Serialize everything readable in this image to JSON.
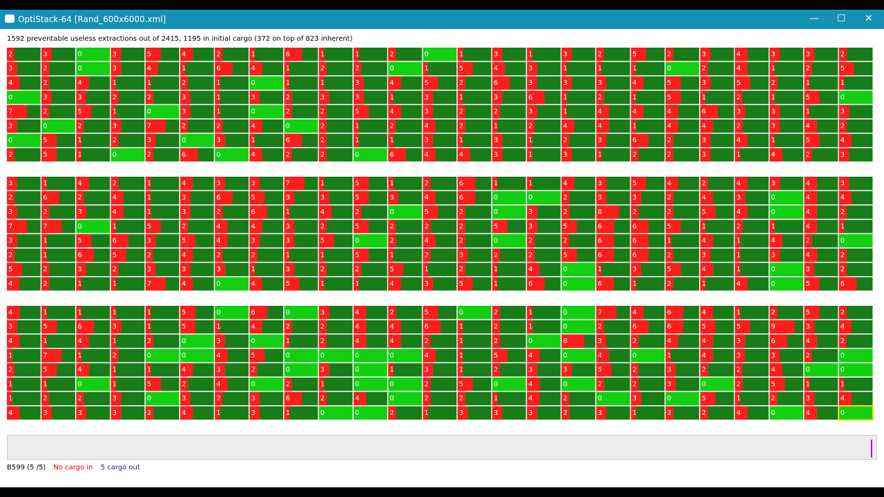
{
  "window": {
    "title": "OptiStack-64 [Rand_600x6000.xml]"
  },
  "summary": "1592 preventable useless extractions out of 2415, 1195 in initial cargo (372 on top of 823 inherent)",
  "grid": {
    "blocks": [
      [
        [
          2,
          3,
          0,
          3,
          5,
          4,
          2,
          1,
          6,
          1,
          1,
          2,
          0,
          1,
          3,
          1,
          3,
          2,
          5,
          2,
          3,
          4,
          3,
          3,
          2
        ],
        [
          3,
          2,
          0,
          3,
          4,
          1,
          6,
          4,
          1,
          2,
          2,
          0,
          1,
          5,
          4,
          3,
          1,
          1,
          1,
          0,
          2,
          4,
          1,
          2,
          5
        ],
        [
          4,
          2,
          4,
          1,
          1,
          2,
          1,
          0,
          1,
          1,
          3,
          4,
          5,
          2,
          6,
          3,
          3,
          3,
          4,
          5,
          3,
          5,
          2,
          1,
          1
        ],
        [
          0,
          3,
          3,
          2,
          2,
          3,
          1,
          3,
          2,
          3,
          3,
          1,
          3,
          1,
          3,
          6,
          1,
          2,
          1,
          5,
          1,
          2,
          1,
          5,
          0
        ],
        [
          7,
          2,
          5,
          1,
          0,
          3,
          1,
          0,
          2,
          2,
          5,
          4,
          3,
          2,
          2,
          3,
          1,
          4,
          4,
          4,
          6,
          3,
          3,
          1,
          3
        ],
        [
          3,
          0,
          2,
          3,
          7,
          2,
          2,
          4,
          0,
          2,
          1,
          2,
          4,
          2,
          1,
          2,
          4,
          4,
          1,
          4,
          4,
          2,
          3,
          4,
          2
        ],
        [
          0,
          5,
          1,
          2,
          3,
          0,
          3,
          1,
          6,
          2,
          1,
          1,
          3,
          1,
          3,
          1,
          2,
          3,
          6,
          2,
          3,
          4,
          1,
          5,
          4
        ],
        [
          2,
          5,
          1,
          0,
          2,
          6,
          0,
          4,
          2,
          2,
          0,
          6,
          4,
          4,
          3,
          1,
          3,
          1,
          2,
          2,
          3,
          1,
          4,
          2,
          3
        ]
      ],
      [
        [
          3,
          1,
          4,
          2,
          1,
          4,
          3,
          3,
          7,
          1,
          5,
          1,
          2,
          6,
          1,
          1,
          4,
          3,
          5,
          4,
          2,
          4,
          3,
          4,
          3
        ],
        [
          2,
          6,
          2,
          4,
          1,
          3,
          6,
          5,
          3,
          3,
          5,
          3,
          4,
          6,
          0,
          0,
          2,
          3,
          3,
          2,
          4,
          3,
          0,
          4,
          4
        ],
        [
          3,
          2,
          3,
          4,
          1,
          3,
          2,
          6,
          1,
          4,
          2,
          0,
          5,
          2,
          0,
          3,
          2,
          8,
          2,
          2,
          5,
          4,
          0,
          4,
          2
        ],
        [
          7,
          7,
          0,
          1,
          5,
          2,
          4,
          4,
          3,
          2,
          5,
          2,
          2,
          2,
          5,
          3,
          5,
          6,
          6,
          5,
          1,
          2,
          1,
          4,
          1
        ],
        [
          3,
          1,
          5,
          6,
          3,
          5,
          4,
          3,
          3,
          5,
          0,
          2,
          4,
          2,
          0,
          2,
          2,
          6,
          6,
          1,
          4,
          1,
          4,
          2,
          0
        ],
        [
          2,
          1,
          6,
          5,
          2,
          4,
          2,
          2,
          1,
          1,
          5,
          1,
          2,
          3,
          2,
          2,
          5,
          6,
          6,
          2,
          3,
          1,
          3,
          4,
          2
        ],
        [
          5,
          2,
          3,
          2,
          3,
          3,
          3,
          1,
          3,
          2,
          2,
          5,
          1,
          2,
          1,
          4,
          0,
          1,
          3,
          5,
          4,
          1,
          0,
          3,
          2
        ],
        [
          4,
          2,
          1,
          1,
          7,
          4,
          0,
          4,
          5,
          1,
          1,
          4,
          3,
          5,
          1,
          6,
          0,
          6,
          1,
          2,
          1,
          4,
          0,
          5,
          6
        ]
      ],
      [
        [
          4,
          1,
          1,
          1,
          1,
          5,
          0,
          6,
          0,
          3,
          4,
          2,
          5,
          0,
          2,
          1,
          0,
          7,
          4,
          6,
          4,
          1,
          2,
          5,
          2
        ],
        [
          3,
          5,
          6,
          3,
          1,
          5,
          1,
          4,
          2,
          2,
          4,
          4,
          6,
          1,
          2,
          1,
          0,
          2,
          6,
          6,
          5,
          5,
          9,
          3,
          4
        ],
        [
          4,
          1,
          4,
          1,
          2,
          0,
          3,
          0,
          1,
          2,
          4,
          4,
          2,
          1,
          2,
          0,
          8,
          3,
          2,
          4,
          4,
          3,
          6,
          4,
          2
        ],
        [
          1,
          7,
          1,
          2,
          0,
          0,
          4,
          5,
          0,
          0,
          0,
          0,
          4,
          1,
          5,
          4,
          0,
          4,
          0,
          1,
          4,
          3,
          3,
          2,
          0
        ],
        [
          2,
          5,
          4,
          1,
          1,
          4,
          3,
          2,
          0,
          3,
          0,
          1,
          3,
          1,
          2,
          3,
          3,
          5,
          2,
          3,
          2,
          2,
          4,
          0,
          0
        ],
        [
          1,
          1,
          0,
          1,
          5,
          2,
          4,
          0,
          2,
          1,
          0,
          0,
          2,
          5,
          0,
          4,
          0,
          2,
          2,
          3,
          0,
          2,
          5,
          1,
          1
        ],
        [
          1,
          2,
          2,
          3,
          0,
          3,
          2,
          3,
          6,
          2,
          4,
          0,
          2,
          2,
          1,
          4,
          2,
          0,
          3,
          0,
          5,
          1,
          2,
          3,
          4
        ],
        [
          4,
          3,
          3,
          3,
          2,
          4,
          1,
          3,
          1,
          0,
          0,
          2,
          1,
          3,
          3,
          3,
          2,
          3,
          1,
          2,
          2,
          4,
          0,
          4,
          0
        ]
      ]
    ]
  },
  "status": {
    "bay": "B599 (5 /5)",
    "cargo_in": "No cargo in",
    "cargo_out": "5 cargo out"
  }
}
